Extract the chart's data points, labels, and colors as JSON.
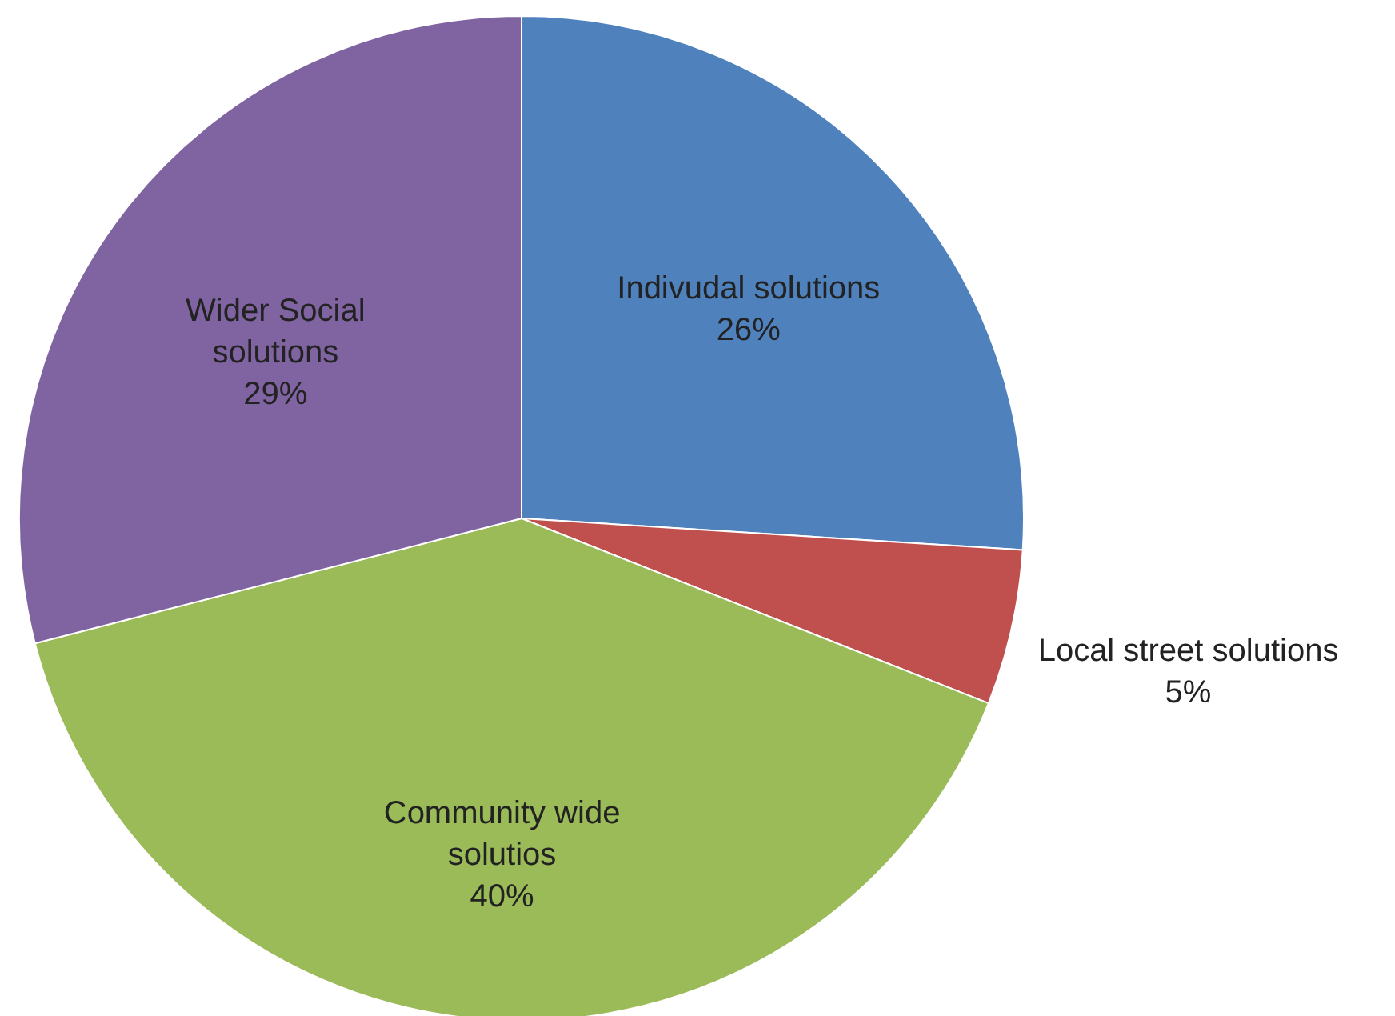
{
  "chart_data": {
    "type": "pie",
    "categories": [
      "Indivudal solutions",
      "Local street solutions",
      "Community wide solutios",
      "Wider Social solutions"
    ],
    "values": [
      26,
      5,
      40,
      29
    ],
    "colors": [
      "#4f81bd",
      "#c0504d",
      "#9bbb59",
      "#8064a2"
    ],
    "value_labels": [
      "26%",
      "5%",
      "40%",
      "29%"
    ]
  }
}
